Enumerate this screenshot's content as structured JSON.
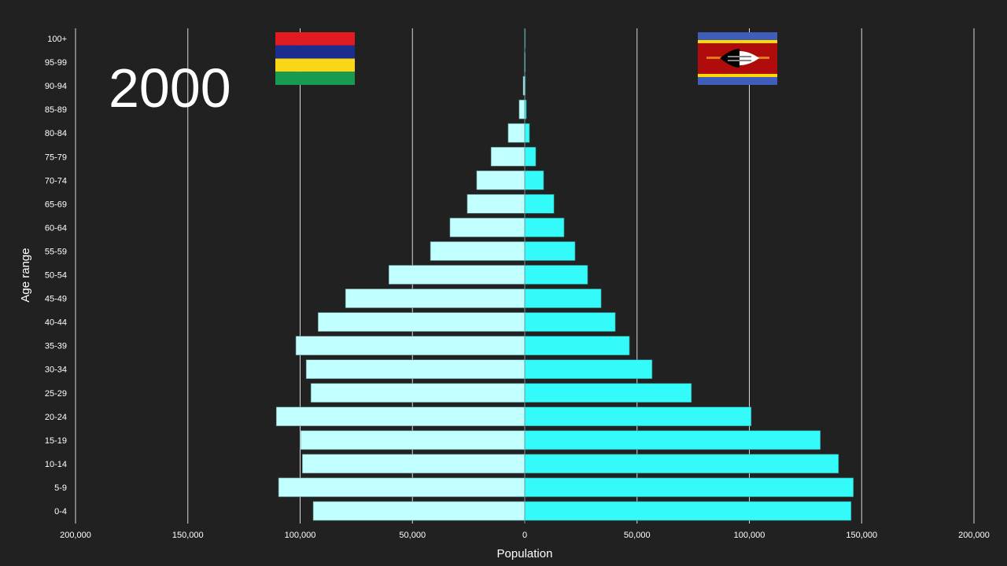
{
  "chart_data": {
    "type": "bar",
    "orientation": "horizontal",
    "layout": "population-pyramid",
    "year_label": "2000",
    "xlabel": "Population",
    "ylabel": "Age range",
    "xlim": [
      -200000,
      200000
    ],
    "xticks": [
      -200000,
      -150000,
      -100000,
      -50000,
      0,
      50000,
      100000,
      150000,
      200000
    ],
    "xtick_labels": [
      "200,000",
      "150,000",
      "100,000",
      "50,000",
      "0",
      "50,000",
      "100,000",
      "150,000",
      "200,000"
    ],
    "grid": "vertical",
    "categories": [
      "0-4",
      "5-9",
      "10-14",
      "15-19",
      "20-24",
      "25-29",
      "30-34",
      "35-39",
      "40-44",
      "45-49",
      "50-54",
      "55-59",
      "60-64",
      "65-69",
      "70-74",
      "75-79",
      "80-84",
      "85-89",
      "90-94",
      "95-99",
      "100+"
    ],
    "series": [
      {
        "side": "left",
        "flag": "Mauritius",
        "color": "#c2ffff",
        "values": [
          94200,
          109600,
          99000,
          99800,
          110600,
          95200,
          97300,
          101900,
          92000,
          79800,
          60500,
          42000,
          33300,
          25600,
          21400,
          15000,
          7400,
          2500,
          700,
          150,
          50
        ]
      },
      {
        "side": "right",
        "flag": "Eswatini",
        "color": "#35fafa",
        "values": [
          145300,
          146300,
          139700,
          131600,
          100800,
          74200,
          56700,
          46600,
          40300,
          34000,
          28000,
          22400,
          17500,
          13000,
          8400,
          4900,
          2100,
          700,
          300,
          100,
          50
        ]
      }
    ]
  },
  "colors": {
    "background": "#212121",
    "grid": "#d9d9d9",
    "text": "#ffffff"
  }
}
